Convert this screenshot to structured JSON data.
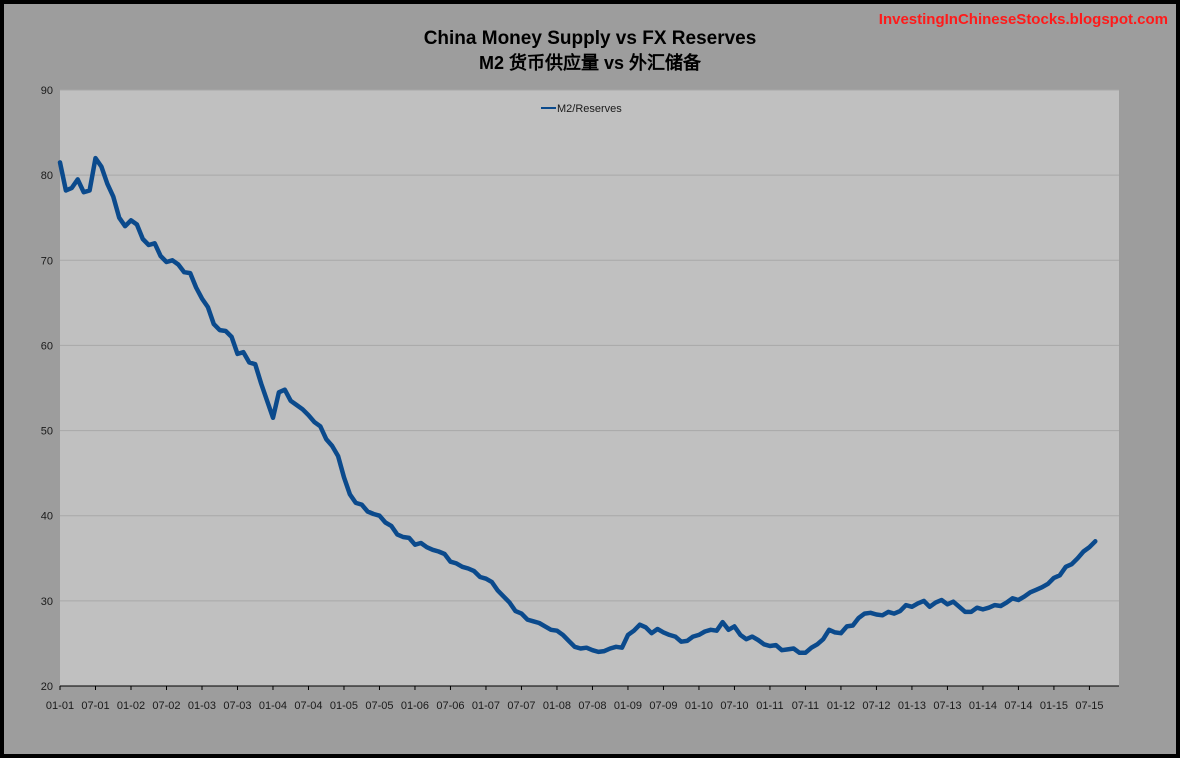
{
  "watermark": "InvestingInChineseStocks.blogspot.com",
  "colors": {
    "background": "#000000",
    "panel": "#9d9d9d",
    "plot_area": "#c0c0c0",
    "gridline": "#a8a8a8",
    "series": "#0b4a8c",
    "watermark": "#ff1a1a"
  },
  "chart_data": {
    "type": "line",
    "title": "China Money Supply vs FX Reserves",
    "subtitle": "M2 货币供应量  vs  外汇储备",
    "xlabel": "",
    "ylabel": "",
    "ylim": [
      20,
      90
    ],
    "yticks": [
      20,
      30,
      40,
      50,
      60,
      70,
      80,
      90
    ],
    "grid": true,
    "legend": {
      "position": "top-left",
      "entries": [
        "M2/Reserves"
      ]
    },
    "x_start": "2001-01",
    "x_end": "2015-12",
    "xticks": [
      "01-01",
      "07-01",
      "01-02",
      "07-02",
      "01-03",
      "07-03",
      "01-04",
      "07-04",
      "01-05",
      "07-05",
      "01-06",
      "07-06",
      "01-07",
      "07-07",
      "01-08",
      "07-08",
      "01-09",
      "07-09",
      "01-10",
      "07-10",
      "01-11",
      "07-11",
      "01-12",
      "07-12",
      "01-13",
      "07-13",
      "01-14",
      "07-14",
      "01-15",
      "07-15"
    ],
    "series": [
      {
        "name": "M2/Reserves",
        "points": [
          [
            "2001-01",
            81.5
          ],
          [
            "2001-02",
            78.2
          ],
          [
            "2001-03",
            78.5
          ],
          [
            "2001-04",
            79.5
          ],
          [
            "2001-05",
            78.0
          ],
          [
            "2001-06",
            78.2
          ],
          [
            "2001-07",
            82.0
          ],
          [
            "2001-08",
            81.0
          ],
          [
            "2001-09",
            79.0
          ],
          [
            "2001-10",
            77.5
          ],
          [
            "2001-11",
            75.0
          ],
          [
            "2001-12",
            74.0
          ],
          [
            "2002-01",
            74.7
          ],
          [
            "2002-02",
            74.2
          ],
          [
            "2002-03",
            72.5
          ],
          [
            "2002-04",
            71.8
          ],
          [
            "2002-05",
            72.0
          ],
          [
            "2002-06",
            70.5
          ],
          [
            "2002-07",
            69.8
          ],
          [
            "2002-08",
            70.0
          ],
          [
            "2002-09",
            69.5
          ],
          [
            "2002-10",
            68.6
          ],
          [
            "2002-11",
            68.5
          ],
          [
            "2002-12",
            66.8
          ],
          [
            "2003-01",
            65.5
          ],
          [
            "2003-02",
            64.5
          ],
          [
            "2003-03",
            62.5
          ],
          [
            "2003-04",
            61.8
          ],
          [
            "2003-05",
            61.7
          ],
          [
            "2003-06",
            61.0
          ],
          [
            "2003-07",
            59.0
          ],
          [
            "2003-08",
            59.2
          ],
          [
            "2003-09",
            58.0
          ],
          [
            "2003-10",
            57.8
          ],
          [
            "2003-11",
            55.5
          ],
          [
            "2003-12",
            53.5
          ],
          [
            "2004-01",
            51.5
          ],
          [
            "2004-02",
            54.5
          ],
          [
            "2004-03",
            54.8
          ],
          [
            "2004-04",
            53.5
          ],
          [
            "2004-05",
            53.0
          ],
          [
            "2004-06",
            52.5
          ],
          [
            "2004-07",
            51.8
          ],
          [
            "2004-08",
            51.0
          ],
          [
            "2004-09",
            50.5
          ],
          [
            "2004-10",
            49.0
          ],
          [
            "2004-11",
            48.2
          ],
          [
            "2004-12",
            47.0
          ],
          [
            "2005-01",
            44.5
          ],
          [
            "2005-02",
            42.5
          ],
          [
            "2005-03",
            41.5
          ],
          [
            "2005-04",
            41.3
          ],
          [
            "2005-05",
            40.5
          ],
          [
            "2005-06",
            40.2
          ],
          [
            "2005-07",
            40.0
          ],
          [
            "2005-08",
            39.2
          ],
          [
            "2005-09",
            38.8
          ],
          [
            "2005-10",
            37.8
          ],
          [
            "2005-11",
            37.5
          ],
          [
            "2005-12",
            37.4
          ],
          [
            "2006-01",
            36.6
          ],
          [
            "2006-02",
            36.8
          ],
          [
            "2006-03",
            36.3
          ],
          [
            "2006-04",
            36.0
          ],
          [
            "2006-05",
            35.8
          ],
          [
            "2006-06",
            35.5
          ],
          [
            "2006-07",
            34.6
          ],
          [
            "2006-08",
            34.4
          ],
          [
            "2006-09",
            34.0
          ],
          [
            "2006-10",
            33.8
          ],
          [
            "2006-11",
            33.5
          ],
          [
            "2006-12",
            32.8
          ],
          [
            "2007-01",
            32.6
          ],
          [
            "2007-02",
            32.2
          ],
          [
            "2007-03",
            31.2
          ],
          [
            "2007-04",
            30.5
          ],
          [
            "2007-05",
            29.8
          ],
          [
            "2007-06",
            28.8
          ],
          [
            "2007-07",
            28.5
          ],
          [
            "2007-08",
            27.8
          ],
          [
            "2007-09",
            27.6
          ],
          [
            "2007-10",
            27.4
          ],
          [
            "2007-11",
            27.0
          ],
          [
            "2007-12",
            26.6
          ],
          [
            "2008-01",
            26.5
          ],
          [
            "2008-02",
            26.0
          ],
          [
            "2008-03",
            25.3
          ],
          [
            "2008-04",
            24.6
          ],
          [
            "2008-05",
            24.4
          ],
          [
            "2008-06",
            24.5
          ],
          [
            "2008-07",
            24.2
          ],
          [
            "2008-08",
            24.0
          ],
          [
            "2008-09",
            24.1
          ],
          [
            "2008-10",
            24.4
          ],
          [
            "2008-11",
            24.6
          ],
          [
            "2008-12",
            24.5
          ],
          [
            "2009-01",
            26.0
          ],
          [
            "2009-02",
            26.5
          ],
          [
            "2009-03",
            27.2
          ],
          [
            "2009-04",
            26.9
          ],
          [
            "2009-05",
            26.2
          ],
          [
            "2009-06",
            26.7
          ],
          [
            "2009-07",
            26.3
          ],
          [
            "2009-08",
            26.0
          ],
          [
            "2009-09",
            25.8
          ],
          [
            "2009-10",
            25.2
          ],
          [
            "2009-11",
            25.3
          ],
          [
            "2009-12",
            25.8
          ],
          [
            "2010-01",
            26.0
          ],
          [
            "2010-02",
            26.4
          ],
          [
            "2010-03",
            26.6
          ],
          [
            "2010-04",
            26.5
          ],
          [
            "2010-05",
            27.5
          ],
          [
            "2010-06",
            26.6
          ],
          [
            "2010-07",
            27.0
          ],
          [
            "2010-08",
            26.0
          ],
          [
            "2010-09",
            25.5
          ],
          [
            "2010-10",
            25.8
          ],
          [
            "2010-11",
            25.4
          ],
          [
            "2010-12",
            24.9
          ],
          [
            "2011-01",
            24.7
          ],
          [
            "2011-02",
            24.8
          ],
          [
            "2011-03",
            24.2
          ],
          [
            "2011-04",
            24.3
          ],
          [
            "2011-05",
            24.4
          ],
          [
            "2011-06",
            23.9
          ],
          [
            "2011-07",
            23.9
          ],
          [
            "2011-08",
            24.5
          ],
          [
            "2011-09",
            24.9
          ],
          [
            "2011-10",
            25.5
          ],
          [
            "2011-11",
            26.6
          ],
          [
            "2011-12",
            26.3
          ],
          [
            "2012-01",
            26.2
          ],
          [
            "2012-02",
            27.0
          ],
          [
            "2012-03",
            27.1
          ],
          [
            "2012-04",
            28.0
          ],
          [
            "2012-05",
            28.5
          ],
          [
            "2012-06",
            28.6
          ],
          [
            "2012-07",
            28.4
          ],
          [
            "2012-08",
            28.3
          ],
          [
            "2012-09",
            28.7
          ],
          [
            "2012-10",
            28.5
          ],
          [
            "2012-11",
            28.8
          ],
          [
            "2012-12",
            29.5
          ],
          [
            "2013-01",
            29.3
          ],
          [
            "2013-02",
            29.7
          ],
          [
            "2013-03",
            30.0
          ],
          [
            "2013-04",
            29.3
          ],
          [
            "2013-05",
            29.8
          ],
          [
            "2013-06",
            30.1
          ],
          [
            "2013-07",
            29.6
          ],
          [
            "2013-08",
            29.9
          ],
          [
            "2013-09",
            29.3
          ],
          [
            "2013-10",
            28.7
          ],
          [
            "2013-11",
            28.7
          ],
          [
            "2013-12",
            29.2
          ],
          [
            "2014-01",
            29.0
          ],
          [
            "2014-02",
            29.2
          ],
          [
            "2014-03",
            29.5
          ],
          [
            "2014-04",
            29.4
          ],
          [
            "2014-05",
            29.8
          ],
          [
            "2014-06",
            30.3
          ],
          [
            "2014-07",
            30.1
          ],
          [
            "2014-08",
            30.5
          ],
          [
            "2014-09",
            31.0
          ],
          [
            "2014-10",
            31.3
          ],
          [
            "2014-11",
            31.6
          ],
          [
            "2014-12",
            32.0
          ],
          [
            "2015-01",
            32.7
          ],
          [
            "2015-02",
            33.0
          ],
          [
            "2015-03",
            34.0
          ],
          [
            "2015-04",
            34.3
          ],
          [
            "2015-05",
            35.0
          ],
          [
            "2015-06",
            35.8
          ],
          [
            "2015-07",
            36.3
          ],
          [
            "2015-08",
            37.0
          ]
        ]
      }
    ]
  }
}
